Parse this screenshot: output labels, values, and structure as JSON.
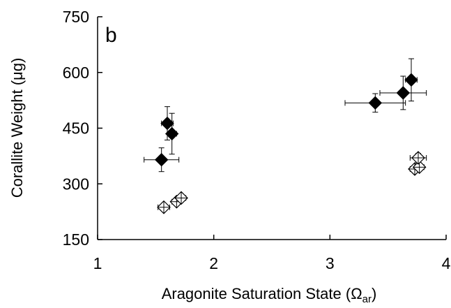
{
  "chart_data": {
    "type": "scatter",
    "panel_label": "b",
    "xlabel_main": "Aragonite Saturation State (",
    "xlabel_symbol": "Ω",
    "xlabel_sub": "ar",
    "xlabel_close": ")",
    "ylabel_main": "Corallite Weight (",
    "ylabel_symbol": "μ",
    "ylabel_unit": "g)",
    "xlim": [
      1,
      4
    ],
    "ylim": [
      150,
      750
    ],
    "xticks": [
      1,
      2,
      3,
      4
    ],
    "yticks": [
      150,
      300,
      450,
      600,
      750
    ],
    "grid": false,
    "series": [
      {
        "marker": "filled-diamond",
        "color": "#000000",
        "points": [
          {
            "x": 1.55,
            "y": 365,
            "xerr": 0.15,
            "yerr": 32
          },
          {
            "x": 1.6,
            "y": 463,
            "xerr": 0.05,
            "yerr": 45
          },
          {
            "x": 1.64,
            "y": 435,
            "xerr": 0.04,
            "yerr": 55
          },
          {
            "x": 3.39,
            "y": 518,
            "xerr": 0.26,
            "yerr": 25
          },
          {
            "x": 3.63,
            "y": 545,
            "xerr": 0.2,
            "yerr": 45
          },
          {
            "x": 3.7,
            "y": 580,
            "xerr": 0.05,
            "yerr": 57
          }
        ]
      },
      {
        "marker": "open-diamond-cross",
        "color": "#000000",
        "points": [
          {
            "x": 1.57,
            "y": 237,
            "xerr": 0.05,
            "yerr": 10
          },
          {
            "x": 1.68,
            "y": 252,
            "xerr": 0.04,
            "yerr": 10
          },
          {
            "x": 1.72,
            "y": 262,
            "xerr": 0.04,
            "yerr": 10
          },
          {
            "x": 3.73,
            "y": 340,
            "xerr": 0.04,
            "yerr": 10
          },
          {
            "x": 3.77,
            "y": 345,
            "xerr": 0.04,
            "yerr": 10
          },
          {
            "x": 3.76,
            "y": 370,
            "xerr": 0.07,
            "yerr": 12
          }
        ]
      }
    ]
  }
}
